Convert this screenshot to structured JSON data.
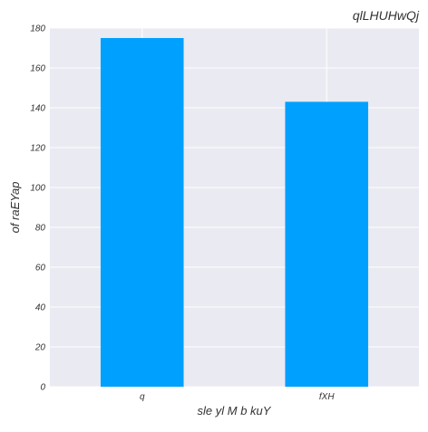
{
  "chart_data": {
    "type": "bar",
    "title": "qlLHUHwQj",
    "xlabel": "sle yl M b kuY",
    "ylabel": "of raEYap",
    "categories": [
      "q",
      "fXH"
    ],
    "values": [
      175,
      143
    ],
    "ylim": [
      0,
      180
    ],
    "yticks": [
      0,
      20,
      40,
      60,
      80,
      100,
      120,
      140,
      160,
      180
    ],
    "grid": true,
    "bar_color": "#00a0ff",
    "plot_background": "#eaeaf2",
    "grid_color": "#ffffff"
  }
}
